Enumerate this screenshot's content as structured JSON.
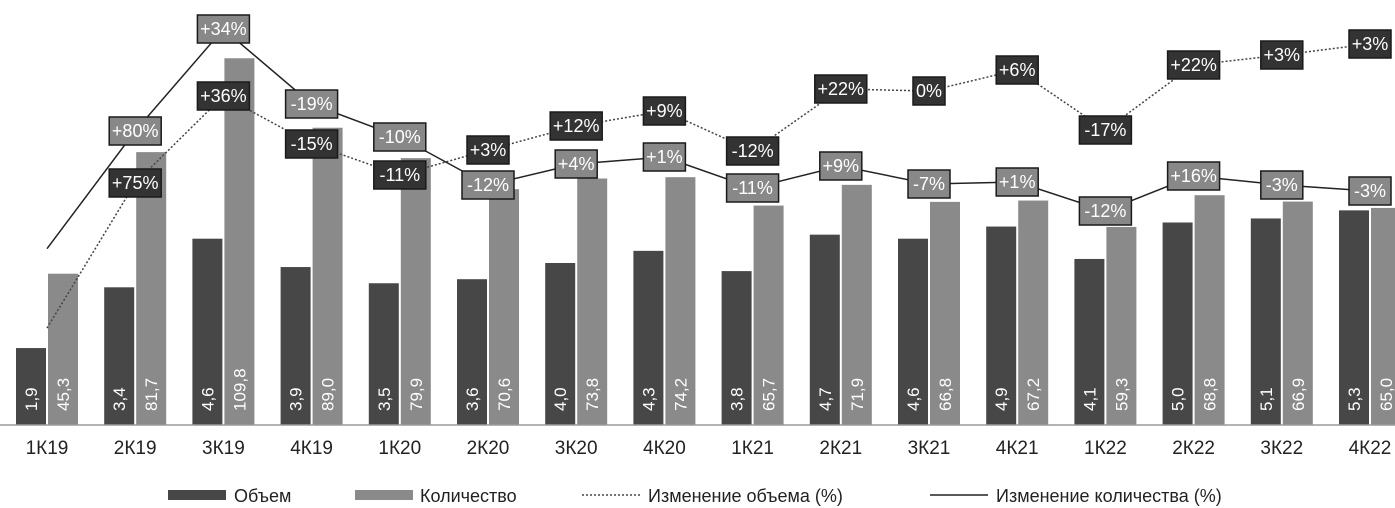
{
  "colors": {
    "volume": "#474747",
    "quantity": "#8a8a8a",
    "volume_box": "#333333",
    "quantity_box": "#888888",
    "axis": "#9a9a9a"
  },
  "chart_data": {
    "type": "bar",
    "title": "",
    "xlabel": "",
    "ylabel": "",
    "categories": [
      "1К19",
      "2К19",
      "3К19",
      "4К19",
      "1К20",
      "2К20",
      "3К20",
      "4К20",
      "1К21",
      "2К21",
      "3К21",
      "4К21",
      "1К22",
      "2К22",
      "3К22",
      "4К22"
    ],
    "series": [
      {
        "name": "Объем",
        "type": "bar",
        "axis": "left",
        "values": [
          1.9,
          3.4,
          4.6,
          3.9,
          3.5,
          3.6,
          4.0,
          4.3,
          3.8,
          4.7,
          4.6,
          4.9,
          4.1,
          5.0,
          5.1,
          5.3
        ],
        "labels": [
          "1,9",
          "3,4",
          "4,6",
          "3,9",
          "3,5",
          "3,6",
          "4,0",
          "4,3",
          "3,8",
          "4,7",
          "4,6",
          "4,9",
          "4,1",
          "5,0",
          "5,1",
          "5,3"
        ]
      },
      {
        "name": "Количество",
        "type": "bar",
        "axis": "right",
        "values": [
          45.3,
          81.7,
          109.8,
          89.0,
          79.9,
          70.6,
          73.8,
          74.2,
          65.7,
          71.9,
          66.8,
          67.2,
          59.3,
          68.8,
          66.9,
          65.0
        ],
        "labels": [
          "45,3",
          "81,7",
          "109,8",
          "89,0",
          "79,9",
          "70,6",
          "73,8",
          "74,2",
          "65,7",
          "71,9",
          "66,8",
          "67,2",
          "59,3",
          "68,8",
          "66,9",
          "65,0"
        ]
      },
      {
        "name": "Изменение объема (%)",
        "type": "line",
        "style": "dotted",
        "values": [
          null,
          75,
          36,
          -15,
          -11,
          3,
          12,
          9,
          -12,
          22,
          0,
          6,
          -17,
          22,
          3,
          3
        ],
        "labels": [
          "",
          "+75%",
          "+36%",
          "-15%",
          "-11%",
          "+3%",
          "+12%",
          "+9%",
          "-12%",
          "+22%",
          "0%",
          "+6%",
          "-17%",
          "+22%",
          "+3%",
          "+3%"
        ]
      },
      {
        "name": "Изменение количества (%)",
        "type": "line",
        "style": "solid",
        "values": [
          null,
          80,
          34,
          -19,
          -10,
          -12,
          4,
          1,
          -11,
          9,
          -7,
          1,
          -12,
          16,
          -3,
          -3
        ],
        "labels": [
          "",
          "+80%",
          "+34%",
          "-19%",
          "-10%",
          "-12%",
          "+4%",
          "+1%",
          "-11%",
          "+9%",
          "-7%",
          "+1%",
          "-12%",
          "+16%",
          "-3%",
          "-3%"
        ]
      }
    ],
    "legend_position": "bottom",
    "grid": false
  }
}
